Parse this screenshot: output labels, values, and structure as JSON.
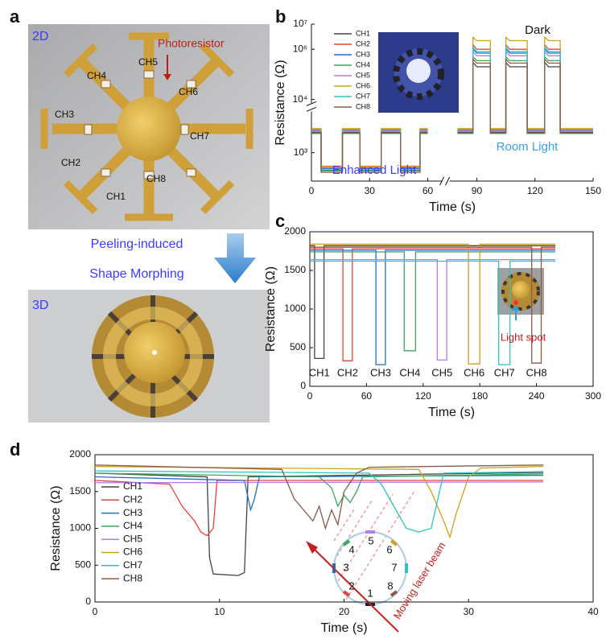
{
  "panel_labels": [
    "a",
    "b",
    "c",
    "d"
  ],
  "panel_a": {
    "label_2d": "2D",
    "photoresistor": "Photoresistor",
    "channels": [
      "CH1",
      "CH2",
      "CH3",
      "CH4",
      "CH5",
      "CH6",
      "CH7",
      "CH8"
    ],
    "arrow_text": [
      "Peeling-induced",
      "Shape Morphing"
    ],
    "label_3d": "3D"
  },
  "chart_data": [
    {
      "type": "line",
      "xlabel": "Time (s)",
      "ylabel": "Resistance (Ω)",
      "log_y": true,
      "xlim": [
        0,
        150
      ],
      "xticks": [
        0,
        30,
        60,
        90,
        120,
        150
      ],
      "xbreak": [
        65,
        78
      ],
      "ylim": [
        500,
        10000000
      ],
      "ybreak": [
        2500,
        10000
      ],
      "yticks": [
        {
          "value": 1000,
          "label": "10³"
        },
        {
          "value": 10000,
          "label": "10⁴"
        },
        {
          "value": 1000000,
          "label": "10⁶"
        },
        {
          "value": 10000000,
          "label": "10⁷"
        }
      ],
      "legend": "upper left",
      "annotations": {
        "dark": "Dark",
        "room": "Room Light",
        "enhanced": "Enhanced Light"
      },
      "x": [
        0,
        5,
        5,
        16,
        16,
        25,
        25,
        36,
        36,
        46,
        46,
        56,
        56,
        60,
        70,
        80,
        88,
        88,
        90,
        97,
        97,
        105,
        105,
        107,
        116,
        116,
        125,
        125,
        127,
        133,
        133,
        150
      ],
      "series": [
        {
          "name": "CH1",
          "color": "#444444",
          "values": [
            1650,
            1650,
            650,
            650,
            1650,
            1650,
            650,
            650,
            1650,
            1650,
            650,
            650,
            1650,
            1650,
            null,
            1650,
            1650,
            300000,
            200000,
            200000,
            1650,
            1650,
            300000,
            200000,
            200000,
            1650,
            1650,
            300000,
            200000,
            200000,
            1650,
            1650
          ]
        },
        {
          "name": "CH2",
          "color": "#e8413a",
          "values": [
            1750,
            1750,
            700,
            700,
            1750,
            1750,
            700,
            700,
            1750,
            1750,
            700,
            700,
            1750,
            1750,
            null,
            1750,
            1750,
            1500000,
            1000000,
            1000000,
            1750,
            1750,
            1500000,
            1000000,
            1000000,
            1750,
            1750,
            1500000,
            1000000,
            1000000,
            1750,
            1750
          ]
        },
        {
          "name": "CH3",
          "color": "#1f6fc4",
          "values": [
            1700,
            1700,
            680,
            680,
            1700,
            1700,
            680,
            680,
            1700,
            1700,
            680,
            680,
            1700,
            1700,
            null,
            1700,
            1700,
            1000000,
            700000,
            700000,
            1700,
            1700,
            1000000,
            700000,
            700000,
            1700,
            1700,
            1000000,
            700000,
            700000,
            1700,
            1700
          ]
        },
        {
          "name": "CH4",
          "color": "#3aa85a",
          "values": [
            1600,
            1600,
            640,
            640,
            1600,
            1600,
            640,
            640,
            1600,
            1600,
            640,
            640,
            1600,
            1600,
            null,
            1600,
            1600,
            500000,
            350000,
            350000,
            1600,
            1600,
            500000,
            350000,
            350000,
            1600,
            1600,
            500000,
            350000,
            350000,
            1600,
            1600
          ]
        },
        {
          "name": "CH5",
          "color": "#b07ee8",
          "values": [
            1720,
            1720,
            690,
            690,
            1720,
            1720,
            690,
            690,
            1720,
            1720,
            690,
            690,
            1720,
            1720,
            null,
            1720,
            1720,
            800000,
            550000,
            550000,
            1720,
            1720,
            800000,
            550000,
            550000,
            1720,
            1720,
            800000,
            550000,
            550000,
            1720,
            1720
          ]
        },
        {
          "name": "CH6",
          "color": "#d4a017",
          "values": [
            1800,
            1800,
            720,
            720,
            1800,
            1800,
            720,
            720,
            1800,
            1800,
            720,
            720,
            1800,
            1800,
            null,
            1800,
            1800,
            3000000,
            2200000,
            2200000,
            1800,
            1800,
            3000000,
            2200000,
            2200000,
            1800,
            1800,
            3000000,
            2200000,
            2200000,
            1800,
            1800
          ]
        },
        {
          "name": "CH7",
          "color": "#2ec4c4",
          "values": [
            1680,
            1680,
            660,
            660,
            1680,
            1680,
            660,
            660,
            1680,
            1680,
            660,
            660,
            1680,
            1680,
            null,
            1680,
            1680,
            1200000,
            800000,
            800000,
            1680,
            1680,
            1200000,
            800000,
            800000,
            1680,
            1680,
            1200000,
            800000,
            800000,
            1680,
            1680
          ]
        },
        {
          "name": "CH8",
          "color": "#8b5a4a",
          "values": [
            1620,
            1620,
            620,
            620,
            1620,
            1620,
            620,
            620,
            1620,
            1620,
            620,
            620,
            1620,
            1620,
            null,
            1620,
            1620,
            400000,
            280000,
            280000,
            1620,
            1620,
            400000,
            280000,
            280000,
            1620,
            1620,
            400000,
            280000,
            280000,
            1620,
            1620
          ]
        }
      ]
    },
    {
      "type": "line",
      "xlabel": "Time (s)",
      "ylabel": "Resistance (Ω)",
      "xlim": [
        0,
        300
      ],
      "xticks": [
        0,
        60,
        120,
        180,
        240,
        300
      ],
      "ylim": [
        0,
        2000
      ],
      "yticks": [
        0,
        500,
        1000,
        1500,
        2000
      ],
      "annotations": {
        "spot": "Light spot"
      },
      "series": [
        {
          "name": "CH1",
          "color": "#444444",
          "x": [
            0,
            5,
            5,
            15,
            15,
            260
          ],
          "values": [
            1820,
            1820,
            360,
            360,
            1820,
            1820
          ]
        },
        {
          "name": "CH2",
          "color": "#e8413a",
          "x": [
            0,
            35,
            35,
            45,
            45,
            260
          ],
          "values": [
            1780,
            1780,
            330,
            330,
            1780,
            1780
          ]
        },
        {
          "name": "CH3",
          "color": "#1f6fc4",
          "x": [
            0,
            70,
            70,
            80,
            80,
            260
          ],
          "values": [
            1760,
            1760,
            280,
            280,
            1760,
            1760
          ]
        },
        {
          "name": "CH4",
          "color": "#3aa85a",
          "x": [
            0,
            100,
            100,
            112,
            112,
            260
          ],
          "values": [
            1740,
            1740,
            460,
            460,
            1740,
            1740
          ]
        },
        {
          "name": "CH5",
          "color": "#b07ee8",
          "x": [
            0,
            135,
            135,
            145,
            145,
            260
          ],
          "values": [
            1640,
            1640,
            340,
            340,
            1640,
            1640
          ]
        },
        {
          "name": "CH6",
          "color": "#d4a017",
          "x": [
            0,
            168,
            168,
            180,
            180,
            260
          ],
          "values": [
            1840,
            1840,
            290,
            290,
            1840,
            1840
          ]
        },
        {
          "name": "CH7",
          "color": "#2ec4c4",
          "x": [
            0,
            200,
            200,
            212,
            212,
            260
          ],
          "values": [
            1620,
            1620,
            280,
            280,
            1620,
            1620
          ]
        },
        {
          "name": "CH8",
          "color": "#8b5a4a",
          "x": [
            0,
            235,
            235,
            245,
            245,
            260
          ],
          "values": [
            1800,
            1800,
            300,
            300,
            1800,
            1800
          ]
        }
      ]
    },
    {
      "type": "line",
      "xlabel": "Time (s)",
      "ylabel": "Resistance (Ω)",
      "xlim": [
        0,
        40
      ],
      "xticks": [
        0,
        10,
        20,
        30,
        40
      ],
      "ylim": [
        0,
        2000
      ],
      "yticks": [
        0,
        500,
        1000,
        1500,
        2000
      ],
      "legend": "center left",
      "annotations": {
        "numbers": [
          "1",
          "2",
          "3",
          "4",
          "5",
          "6",
          "7",
          "8"
        ],
        "beam": "Moving laser beam"
      },
      "series": [
        {
          "name": "CH1",
          "color": "#444444",
          "x": [
            0,
            9,
            9.2,
            9.5,
            11.5,
            12,
            12.3,
            36
          ],
          "values": [
            1750,
            1700,
            600,
            380,
            360,
            400,
            1700,
            1760
          ]
        },
        {
          "name": "CH2",
          "color": "#e8413a",
          "x": [
            0,
            6,
            7,
            8,
            8.5,
            9,
            9.5,
            9.8,
            36
          ],
          "values": [
            1650,
            1600,
            1300,
            1100,
            950,
            900,
            1000,
            1650,
            1650
          ]
        },
        {
          "name": "CH3",
          "color": "#1f6fc4",
          "x": [
            0,
            12,
            12.5,
            12.8,
            13.2,
            36
          ],
          "values": [
            1700,
            1650,
            1250,
            1400,
            1700,
            1720
          ]
        },
        {
          "name": "CH4",
          "color": "#3aa85a",
          "x": [
            0,
            18,
            19,
            19.5,
            20,
            20.5,
            21,
            21.5,
            36
          ],
          "values": [
            1750,
            1700,
            1550,
            1300,
            1450,
            1350,
            1500,
            1700,
            1740
          ]
        },
        {
          "name": "CH5",
          "color": "#b07ee8",
          "x": [
            0,
            36
          ],
          "values": [
            1620,
            1630
          ]
        },
        {
          "name": "CH6",
          "color": "#d4a017",
          "x": [
            0,
            26,
            27,
            28,
            28.5,
            29,
            30,
            31,
            36
          ],
          "values": [
            1840,
            1800,
            1500,
            1100,
            880,
            1200,
            1700,
            1820,
            1840
          ]
        },
        {
          "name": "CH7",
          "color": "#2ec4c4",
          "x": [
            0,
            22,
            23,
            24,
            25,
            26,
            27,
            28,
            36
          ],
          "values": [
            1780,
            1750,
            1600,
            1300,
            1000,
            950,
            1000,
            1750,
            1770
          ]
        },
        {
          "name": "CH8",
          "color": "#8b5a4a",
          "x": [
            0,
            15,
            16,
            17,
            17.5,
            18,
            18.5,
            19,
            19.5,
            20,
            21,
            22,
            36
          ],
          "values": [
            1860,
            1800,
            1400,
            1200,
            1100,
            1300,
            1000,
            1250,
            1050,
            1500,
            1750,
            1830,
            1860
          ]
        }
      ]
    }
  ]
}
